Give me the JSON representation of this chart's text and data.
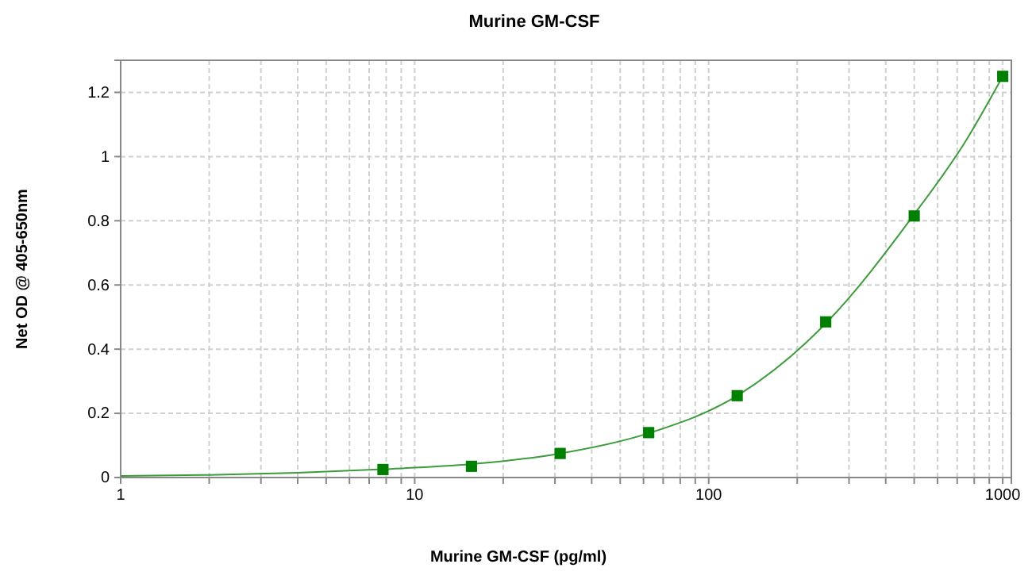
{
  "chart_data": {
    "type": "scatter",
    "title": "Murine GM-CSF",
    "xlabel": "Murine GM-CSF (pg/ml)",
    "ylabel": "Net OD @ 405-650nm",
    "log": "x",
    "grid": true,
    "xlim": [
      1,
      1070
    ],
    "ylim": [
      0,
      1.3
    ],
    "xticks": [
      1,
      {
        "value": 2,
        "label": null
      },
      {
        "value": 3,
        "label": null
      },
      {
        "value": 4,
        "label": null
      },
      {
        "value": 5,
        "label": null
      },
      {
        "value": 6,
        "label": null
      },
      {
        "value": 7,
        "label": null
      },
      {
        "value": 8,
        "label": null
      },
      {
        "value": 9,
        "label": null
      },
      10,
      {
        "value": 20,
        "label": null
      },
      {
        "value": 30,
        "label": null
      },
      {
        "value": 40,
        "label": null
      },
      {
        "value": 50,
        "label": null
      },
      {
        "value": 60,
        "label": null
      },
      {
        "value": 70,
        "label": null
      },
      {
        "value": 80,
        "label": null
      },
      {
        "value": 90,
        "label": null
      },
      100,
      {
        "value": 200,
        "label": null
      },
      {
        "value": 300,
        "label": null
      },
      {
        "value": 400,
        "label": null
      },
      {
        "value": 500,
        "label": null
      },
      {
        "value": 600,
        "label": null
      },
      {
        "value": 700,
        "label": null
      },
      {
        "value": 800,
        "label": null
      },
      {
        "value": 900,
        "label": null
      },
      1000
    ],
    "yticks": [
      0,
      0.2,
      0.4,
      0.6,
      0.8,
      1,
      1.2
    ],
    "series": [
      {
        "type": "line",
        "marker": "none",
        "color": "#3c9c3c",
        "x": [
          1,
          2,
          4,
          7.8,
          15.6,
          31.25,
          62.5,
          125,
          250,
          500,
          750,
          1000
        ],
        "values": [
          0.005,
          0.008,
          0.015,
          0.026,
          0.042,
          0.075,
          0.138,
          0.255,
          0.48,
          0.82,
          1.05,
          1.25
        ]
      },
      {
        "type": "scatter",
        "marker": "square",
        "color": "#008000",
        "x": [
          7.8,
          15.6,
          31.25,
          62.5,
          125,
          250,
          500,
          1000
        ],
        "values": [
          0.025,
          0.035,
          0.075,
          0.14,
          0.255,
          0.485,
          0.815,
          1.25
        ]
      }
    ]
  }
}
